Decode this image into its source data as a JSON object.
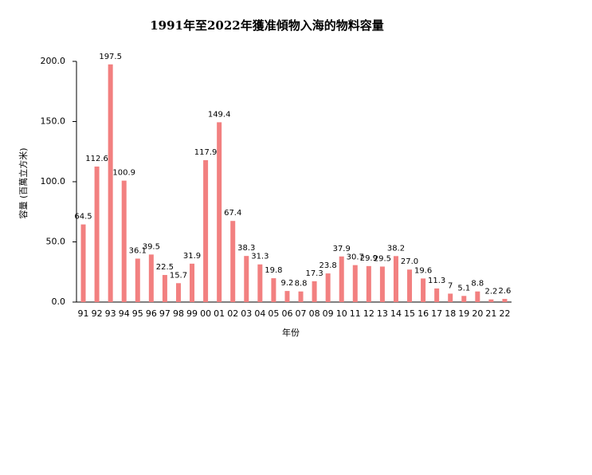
{
  "chart_data": {
    "type": "bar",
    "title": "1991年至2022年獲准傾物入海的物料容量",
    "x_label": "年份",
    "y_label": "容量 (百萬立方米)",
    "categories": [
      "91",
      "92",
      "93",
      "94",
      "95",
      "96",
      "97",
      "98",
      "99",
      "00",
      "01",
      "02",
      "03",
      "04",
      "05",
      "06",
      "07",
      "08",
      "09",
      "10",
      "11",
      "12",
      "13",
      "14",
      "15",
      "16",
      "17",
      "18",
      "19",
      "20",
      "21",
      "22"
    ],
    "values": [
      64.5,
      112.6,
      197.5,
      100.9,
      36.1,
      39.5,
      22.5,
      15.7,
      31.9,
      117.9,
      149.4,
      67.4,
      38.3,
      31.3,
      19.8,
      9.2,
      8.8,
      17.3,
      23.8,
      37.9,
      30.7,
      29.9,
      29.5,
      38.2,
      27.0,
      19.6,
      11.3,
      7,
      5.1,
      8.8,
      2.2,
      2.6
    ],
    "value_labels": [
      "64.5",
      "112.6",
      "197.5",
      "100.9",
      "36.1",
      "39.5",
      "22.5",
      "15.7",
      "31.9",
      "117.9",
      "149.4",
      "67.4",
      "38.3",
      "31.3",
      "19.8",
      "9.2",
      "8.8",
      "17.3",
      "23.8",
      "37.9",
      "30.7",
      "29.9",
      "29.5",
      "38.2",
      "27.0",
      "19.6",
      "11.3",
      "7",
      "5.1",
      "8.8",
      "2.2",
      "2.6"
    ],
    "color": "#f28080",
    "ylim": [
      0,
      200
    ],
    "yticks": [
      {
        "value": 0,
        "label": "0.0"
      },
      {
        "value": 50,
        "label": "50.0"
      },
      {
        "value": 100,
        "label": "100.0"
      },
      {
        "value": 150,
        "label": "150.0"
      },
      {
        "value": 200,
        "label": "200.0"
      }
    ],
    "grid": false
  }
}
